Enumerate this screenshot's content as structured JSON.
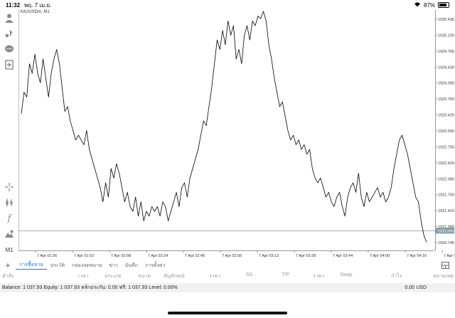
{
  "status_bar": {
    "time": "11:32",
    "date": "พฤ. 7 เม.ย.",
    "battery": "87%"
  },
  "chart": {
    "symbol_label": "XAUUSDm, M1",
    "current_price_label": "1920.993",
    "line_color": "#000000",
    "current_line_color": "#7f99a3",
    "price_tag_color": "#7f99a3"
  },
  "chart_data": {
    "type": "line",
    "title": "",
    "xlabel": "",
    "ylabel": "",
    "ylim": [
      1920.58,
      1925.6
    ],
    "yticks": [
      1925.435,
      1925.1,
      1924.765,
      1924.43,
      1924.095,
      1923.76,
      1923.425,
      1923.09,
      1922.755,
      1922.42,
      1922.085,
      1921.75,
      1921.415,
      1921.08,
      1920.745
    ],
    "xticks": [
      "7 Apr 01:36",
      "7 Apr 01:52",
      "7 Apr 02:08",
      "7 Apr 02:24",
      "7 Apr 02:40",
      "7 Apr 02:56",
      "7 Apr 03:12",
      "7 Apr 03:28",
      "7 Apr 03:44",
      "7 Apr 04:00",
      "7 Apr 04:16",
      "7 Apr 04:32"
    ],
    "grid": false,
    "current_price": 1920.993,
    "series": [
      {
        "name": "",
        "values": [
          1923.45,
          1923.9,
          1923.8,
          1924.5,
          1924.3,
          1924.7,
          1924.3,
          1924.1,
          1924.6,
          1924.2,
          1923.8,
          1924.3,
          1924.6,
          1924.8,
          1924.5,
          1924.0,
          1923.5,
          1923.6,
          1923.3,
          1923.1,
          1922.9,
          1923.0,
          1922.9,
          1922.8,
          1923.1,
          1922.7,
          1922.5,
          1922.3,
          1922.1,
          1921.9,
          1921.6,
          1922.0,
          1921.7,
          1922.3,
          1922.1,
          1922.4,
          1922.2,
          1921.9,
          1921.6,
          1921.8,
          1921.5,
          1921.4,
          1921.7,
          1921.3,
          1921.6,
          1921.2,
          1921.4,
          1921.3,
          1921.5,
          1921.4,
          1921.5,
          1921.3,
          1921.6,
          1921.5,
          1921.2,
          1921.4,
          1921.6,
          1921.8,
          1921.5,
          1921.9,
          1922.0,
          1921.7,
          1922.1,
          1922.3,
          1922.5,
          1922.7,
          1923.0,
          1923.3,
          1923.2,
          1923.6,
          1924.0,
          1924.5,
          1925.0,
          1924.8,
          1925.2,
          1924.9,
          1925.4,
          1925.1,
          1925.3,
          1924.6,
          1924.8,
          1924.5,
          1925.1,
          1925.3,
          1925.0,
          1925.4,
          1925.3,
          1925.5,
          1925.45,
          1925.6,
          1925.4,
          1924.9,
          1924.6,
          1924.2,
          1923.9,
          1923.6,
          1923.7,
          1923.4,
          1923.1,
          1922.9,
          1923.0,
          1922.8,
          1922.9,
          1922.7,
          1922.8,
          1922.6,
          1922.7,
          1922.3,
          1922.1,
          1922.0,
          1922.1,
          1921.9,
          1921.7,
          1921.8,
          1921.6,
          1921.5,
          1921.7,
          1921.8,
          1921.5,
          1921.3,
          1921.7,
          1921.9,
          1922.0,
          1921.8,
          1922.2,
          1921.7,
          1921.5,
          1921.8,
          1921.6,
          1921.7,
          1921.8,
          1921.9,
          1921.7,
          1921.8,
          1921.6,
          1921.7,
          1921.9,
          1922.3,
          1922.6,
          1922.9,
          1923.0,
          1922.8,
          1922.6,
          1922.3,
          1922.0,
          1921.7,
          1921.6,
          1921.2,
          1920.9,
          1920.75
        ]
      }
    ]
  },
  "tabs": [
    {
      "label": "การซื้อขาย",
      "active": true
    },
    {
      "label": "ประวัติ",
      "active": false
    },
    {
      "label": "กล่องจดหมาย",
      "active": false
    },
    {
      "label": "ข่าว",
      "active": false
    },
    {
      "label": "บันทึก",
      "active": false
    },
    {
      "label": "การตั้งค่า",
      "active": false
    }
  ],
  "columns": [
    "คำสั่ง",
    "เวลา",
    "ประเภท",
    "ขนาด",
    "สัญลักษณ์",
    "ราคา",
    "S/L",
    "T/P",
    "ราคา",
    "Swap",
    "กำไร",
    "หมายเหตุ"
  ],
  "balance": {
    "text": "Balance: 1 037.93 Equity: 1 037.93 หลักประกัน: 0.00 ฟรี: 1 037.93 Level: 0.00%",
    "profit": "0.00",
    "currency": "USD"
  }
}
